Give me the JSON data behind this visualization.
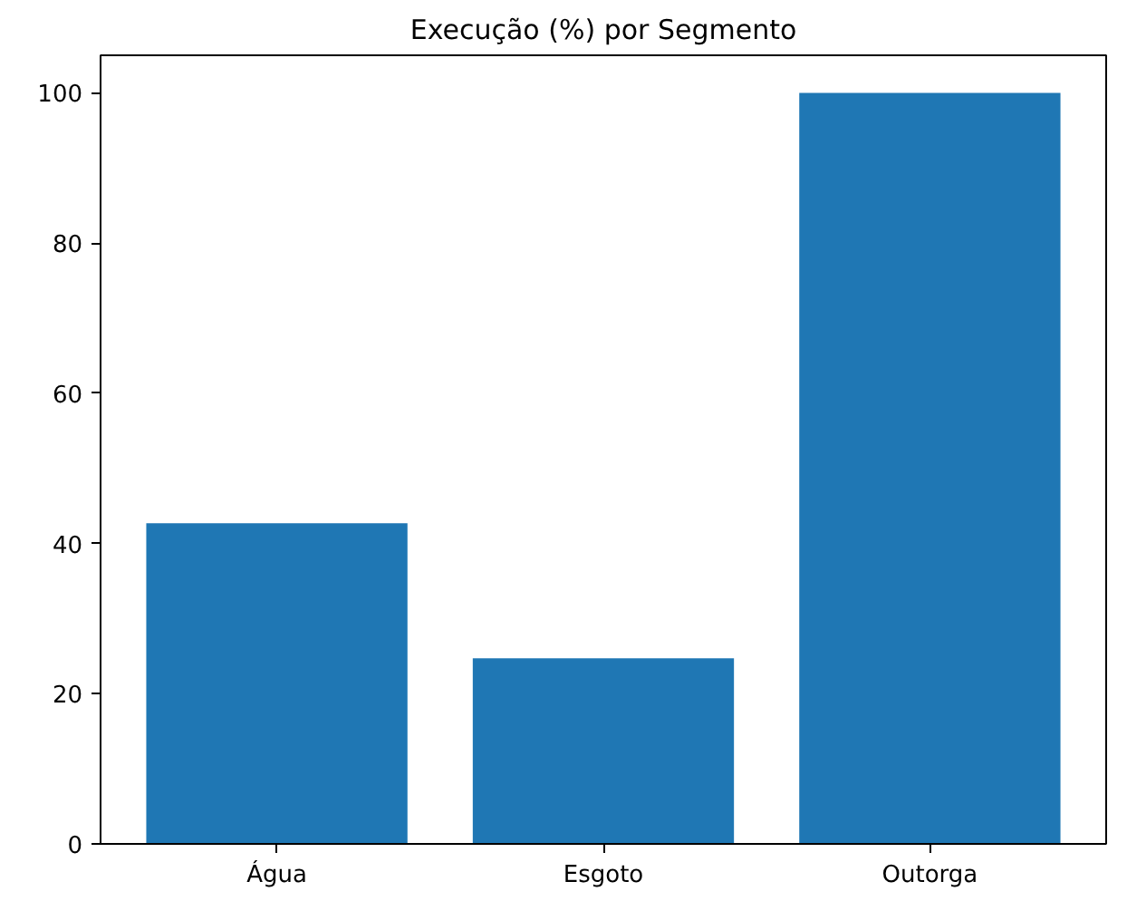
{
  "chart_data": {
    "type": "bar",
    "title": "Execução (%) por Segmento",
    "categories": [
      "Água",
      "Esgoto",
      "Outorga"
    ],
    "values": [
      42.7,
      24.7,
      100
    ],
    "color": "#1f77b4",
    "ylim": [
      0,
      105
    ],
    "yticks": [
      0,
      20,
      40,
      60,
      80,
      100
    ],
    "grid": false
  }
}
